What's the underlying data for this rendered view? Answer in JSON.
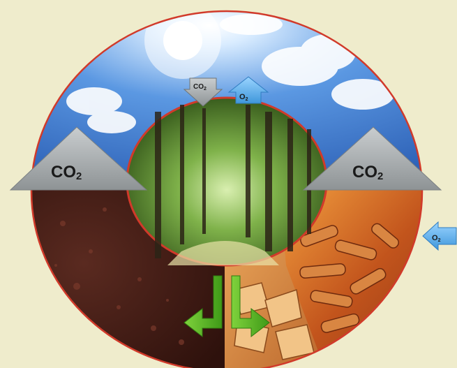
{
  "diagram": {
    "labels": {
      "co2_left": {
        "main": "CO",
        "sub": "2"
      },
      "co2_right": {
        "main": "CO",
        "sub": "2"
      },
      "co2_small": {
        "main": "CO",
        "sub": "2"
      },
      "o2_small": {
        "main": "O",
        "sub": "2"
      },
      "o2_side": {
        "main": "O",
        "sub": "2"
      }
    },
    "segments": [
      "sky",
      "forest",
      "soil",
      "wood-chips",
      "wood-pellets"
    ],
    "colors": {
      "background": "#efeccc",
      "ring_border": "#d13a2a",
      "sky": "#4a86d6",
      "soil": "#4a1f18",
      "chips": "#d98a3a",
      "pellets": "#c75a1e",
      "forest": "#4f7a2a",
      "co2_arrow": "#a9aeb0",
      "o2_arrow": "#5fb4ef",
      "green_arrow": "#58b22a"
    },
    "icons": [
      "sun-icon",
      "cloud-icon"
    ]
  }
}
